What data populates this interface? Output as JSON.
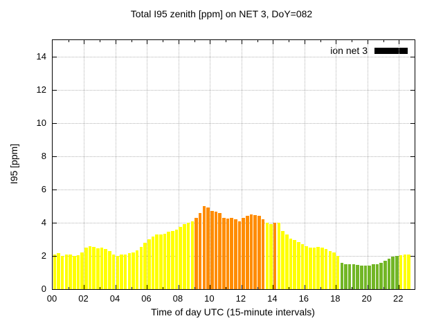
{
  "chart_data": {
    "type": "bar",
    "title": "Total I95 zenith [ppm] on NET 3, DoY=082",
    "xlabel": "Time of day UTC (15-minute intervals)",
    "ylabel": "I95 [ppm]",
    "xlim": [
      0,
      23
    ],
    "ylim": [
      0,
      15
    ],
    "grid": true,
    "interval_minutes": 15,
    "yticks": [
      0,
      2,
      4,
      6,
      8,
      10,
      12,
      14
    ],
    "xticks": [
      0,
      2,
      4,
      6,
      8,
      10,
      12,
      14,
      16,
      18,
      20,
      22
    ],
    "xtick_labels": [
      "00",
      "02",
      "04",
      "06",
      "08",
      "10",
      "12",
      "14",
      "16",
      "18",
      "20",
      "22"
    ],
    "legend": {
      "label": "ion net 3",
      "swatch_color": "#000000",
      "position": "top-right"
    },
    "colors": {
      "yellow": "#ffff00",
      "orange": "#ff8c00",
      "green": "#72b626"
    },
    "values": [
      2.1,
      2.15,
      2.0,
      2.1,
      2.1,
      2.0,
      2.05,
      2.2,
      2.5,
      2.6,
      2.55,
      2.45,
      2.5,
      2.4,
      2.3,
      2.1,
      2.0,
      2.1,
      2.1,
      2.15,
      2.2,
      2.35,
      2.55,
      2.8,
      3.0,
      3.15,
      3.3,
      3.3,
      3.35,
      3.45,
      3.5,
      3.6,
      3.75,
      3.9,
      4.0,
      4.1,
      4.3,
      4.6,
      5.0,
      4.9,
      4.7,
      4.65,
      4.6,
      4.3,
      4.25,
      4.3,
      4.2,
      4.1,
      4.3,
      4.4,
      4.5,
      4.45,
      4.4,
      4.2,
      4.0,
      3.9,
      4.0,
      4.0,
      3.5,
      3.3,
      3.05,
      2.95,
      2.85,
      2.7,
      2.6,
      2.5,
      2.5,
      2.55,
      2.5,
      2.4,
      2.3,
      2.2,
      2.0,
      1.6,
      1.5,
      1.5,
      1.5,
      1.45,
      1.4,
      1.4,
      1.4,
      1.5,
      1.5,
      1.6,
      1.7,
      1.85,
      1.95,
      2.0,
      2.05,
      2.1,
      2.1
    ],
    "bar_colors": [
      "yellow",
      "yellow",
      "yellow",
      "yellow",
      "yellow",
      "yellow",
      "yellow",
      "yellow",
      "yellow",
      "yellow",
      "yellow",
      "yellow",
      "yellow",
      "yellow",
      "yellow",
      "yellow",
      "yellow",
      "yellow",
      "yellow",
      "yellow",
      "yellow",
      "yellow",
      "yellow",
      "yellow",
      "yellow",
      "yellow",
      "yellow",
      "yellow",
      "yellow",
      "yellow",
      "yellow",
      "yellow",
      "yellow",
      "yellow",
      "yellow",
      "yellow",
      "orange",
      "orange",
      "orange",
      "orange",
      "orange",
      "orange",
      "orange",
      "orange",
      "orange",
      "orange",
      "orange",
      "orange",
      "orange",
      "orange",
      "orange",
      "orange",
      "orange",
      "orange",
      "yellow",
      "yellow",
      "orange",
      "yellow",
      "yellow",
      "yellow",
      "yellow",
      "yellow",
      "yellow",
      "yellow",
      "yellow",
      "yellow",
      "yellow",
      "yellow",
      "yellow",
      "yellow",
      "yellow",
      "yellow",
      "yellow",
      "green",
      "green",
      "green",
      "green",
      "green",
      "green",
      "green",
      "green",
      "green",
      "green",
      "green",
      "green",
      "green",
      "green",
      "green",
      "yellow",
      "yellow",
      "yellow"
    ]
  }
}
